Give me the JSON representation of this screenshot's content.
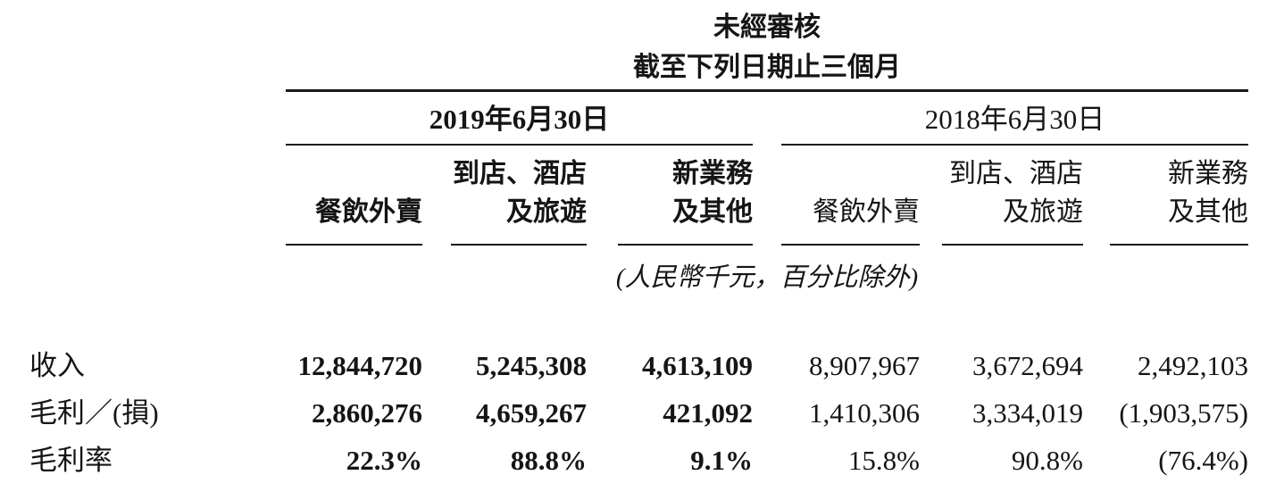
{
  "table": {
    "title_line1": "未經審核",
    "title_line2": "截至下列日期止三個月",
    "periods": {
      "p2019": "2019年6月30日",
      "p2018": "2018年6月30日"
    },
    "columns": [
      {
        "l1": "",
        "l2": "餐飲外賣"
      },
      {
        "l1": "到店、酒店",
        "l2": "及旅遊"
      },
      {
        "l1": "新業務",
        "l2": "及其他"
      },
      {
        "l1": "",
        "l2": "餐飲外賣"
      },
      {
        "l1": "到店、酒店",
        "l2": "及旅遊"
      },
      {
        "l1": "新業務",
        "l2": "及其他"
      }
    ],
    "unit_note": "(人民幣千元，百分比除外)",
    "rows": [
      {
        "label": "收入",
        "values": [
          "12,844,720",
          "5,245,308",
          "4,613,109",
          "8,907,967",
          "3,672,694",
          "2,492,103"
        ]
      },
      {
        "label": "毛利／(損)",
        "values": [
          "2,860,276",
          "4,659,267",
          "421,092",
          "1,410,306",
          "3,334,019",
          "(1,903,575)"
        ]
      },
      {
        "label": "毛利率",
        "values": [
          "22.3%",
          "88.8%",
          "9.1%",
          "15.8%",
          "90.8%",
          "(76.4%)"
        ]
      }
    ]
  }
}
